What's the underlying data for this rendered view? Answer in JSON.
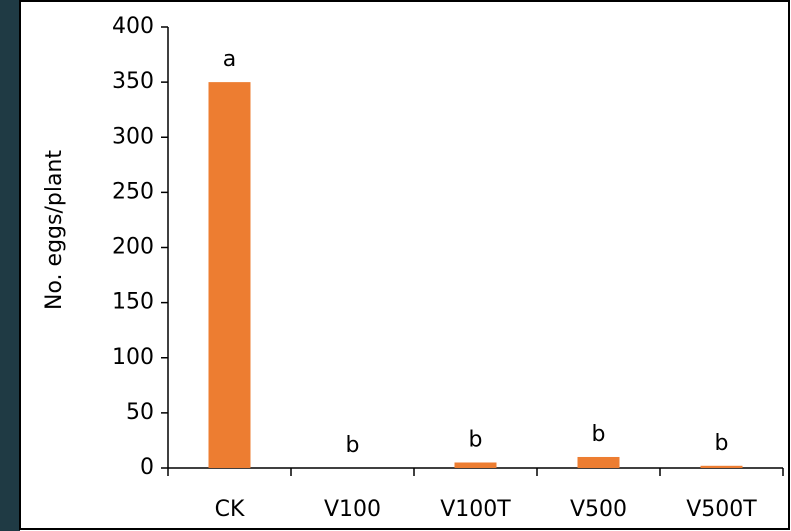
{
  "chart_data": {
    "type": "bar",
    "y_label": "No. eggs/plant",
    "categories": [
      "CK",
      "V100",
      "V100T",
      "V500",
      "V500T"
    ],
    "values": [
      350,
      0,
      5,
      10,
      2
    ],
    "significance_letters": [
      "a",
      "b",
      "b",
      "b",
      "b"
    ],
    "color": "#ed7d31",
    "ylim": [
      0,
      400
    ],
    "yticks": [
      0,
      50,
      100,
      150,
      200,
      250,
      300,
      350,
      400
    ],
    "grid": false
  }
}
